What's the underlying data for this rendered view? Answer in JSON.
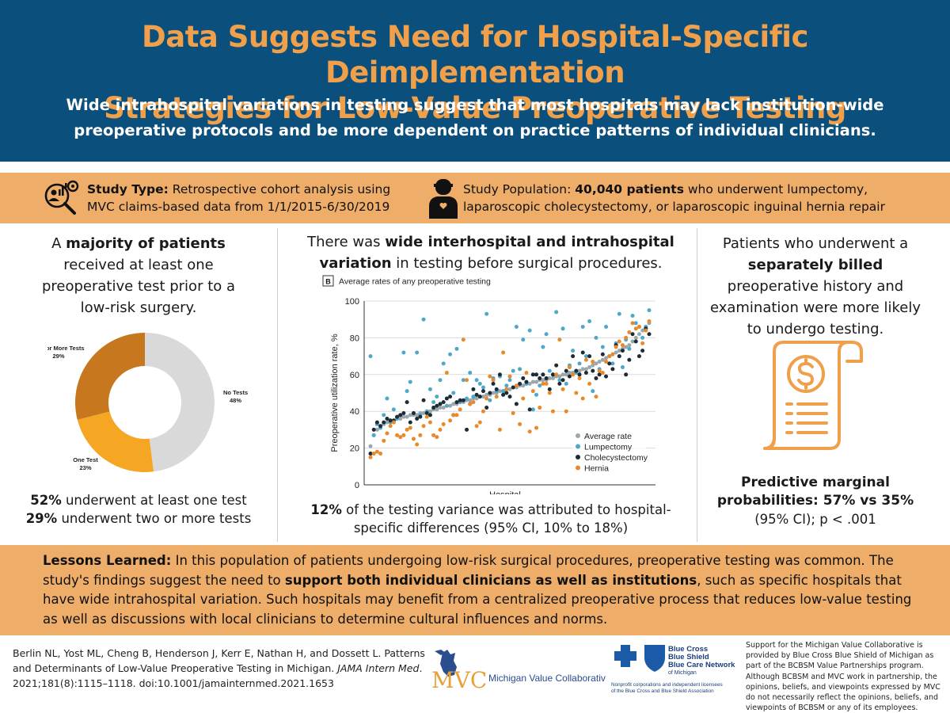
{
  "header": {
    "title_line1": "Data Suggests Need for Hospital-Specific Deimplementation",
    "title_line2": "Strategies for Low-Value Preoperative Testing",
    "subtitle": "Wide intrahospital variations in testing suggest that most hospitals may lack institution-wide preoperative protocols and be more dependent on practice patterns of individual clinicians.",
    "title_color": "#f0a04b",
    "bg_color": "#0b4f7c"
  },
  "study": {
    "type_label": "Study Type:",
    "type_text": " Retrospective cohort analysis using MVC claims-based data from 1/1/2015-6/30/2019",
    "pop_label": "Study Population: ",
    "pop_bold": "40,040 patients",
    "pop_text": " who underwent lumpectomy, laparoscopic cholecystectomy, or laparoscopic inguinal hernia repair",
    "icon1": "data-analysis-icon",
    "icon2": "person-icon",
    "bg_color": "#eeae6a"
  },
  "left": {
    "head_a": "A ",
    "head_bold": "majority of patients",
    "head_b": " received at least one preoperative test prior to a low-risk surgery.",
    "stat1_bold": "52%",
    "stat1_text": " underwent at least one test",
    "stat2_bold": "29%",
    "stat2_text": " underwent two or more tests"
  },
  "middle": {
    "head_a": "There was ",
    "head_bold": "wide interhospital and intrahospital variation",
    "head_b": " in testing before surgical procedures.",
    "foot_bold": "12%",
    "foot_text": " of the testing variance was attributed to hospital-specific differences (95% CI, 10% to 18%)"
  },
  "right": {
    "head_a": "Patients who underwent a ",
    "head_bold": "separately billed",
    "head_b": " preoperative history and examination were more likely to undergo testing.",
    "foot_bold": "Predictive marginal probabilities: 57% vs 35%",
    "foot_text": "(95% CI); p < .001",
    "icon": "bill-dollar-icon",
    "icon_color": "#f0a04b"
  },
  "lessons": {
    "label": "Lessons Learned:",
    "text_a": " In this population of patients undergoing low-risk surgical procedures, preoperative testing was common. The study's findings suggest the need to ",
    "text_bold": "support both individual clinicians as well as institutions",
    "text_b": ", such as specific hospitals that have wide intrahospital variation. Such hospitals may benefit from a centralized preoperative process that reduces low-value testing as well as discussions with local clinicians to determine cultural influences and norms."
  },
  "footer": {
    "citation_a": "Berlin NL, Yost ML, Cheng B, Henderson J, Kerr E, Nathan H, and Dossett L. Patterns and Determinants of Low-Value Preoperative Testing in Michigan. ",
    "citation_journal": "JAMA Intern Med",
    "citation_b": ". 2021;181(8):1115–1118. doi:10.1001/jamainternmed.2021.1653",
    "mvc_letters": "MVC",
    "mvc_name": "Michigan Value Collaborative",
    "bcbs_line1": "Blue Cross",
    "bcbs_line2": "Blue Shield",
    "bcbs_line3": "Blue Care Network",
    "bcbs_line4": "of Michigan",
    "bcbs_small1": "Nonprofit corporations and independent licensees",
    "bcbs_small2": "of the Blue Cross and Blue Shield Association",
    "support": "Support for the Michigan Value Collaborative is provided by Blue Cross Blue Shield of Michigan as part of the BCBSM Value Partnerships program. Although BCBSM and MVC work in partnership, the opinions, beliefs, and viewpoints expressed by MVC do not necessarily reflect the opinions, beliefs, and viewpoints of BCBSM or any of its employees."
  },
  "chart_data": [
    {
      "type": "pie",
      "donut": true,
      "slices": [
        {
          "label": "No Tests",
          "pct_label": "48%",
          "value": 48,
          "color": "#d9d9d9"
        },
        {
          "label": "One Test",
          "pct_label": "23%",
          "value": 23,
          "color": "#f5a623"
        },
        {
          "label": "Two or More Tests",
          "pct_label": "29%",
          "value": 29,
          "color": "#c7781f"
        }
      ]
    },
    {
      "type": "scatter",
      "panel_label": "B",
      "title": "Average rates of any preoperative testing",
      "xlabel": "Hospital",
      "ylabel": "Preoperative utilization rate, %",
      "ylim": [
        0,
        100
      ],
      "yticks": [
        0,
        20,
        40,
        60,
        80,
        100
      ],
      "grid": true,
      "legend_position": "bottom-right",
      "series": [
        {
          "name": "Average rate",
          "color": "#9aa7ad",
          "values": [
            21,
            27,
            30,
            31,
            33,
            34,
            35,
            35,
            36,
            36,
            37,
            37,
            38,
            38,
            38,
            39,
            39,
            40,
            40,
            41,
            41,
            42,
            42,
            43,
            43,
            44,
            44,
            45,
            45,
            46,
            46,
            47,
            47,
            48,
            48,
            49,
            49,
            50,
            50,
            51,
            51,
            52,
            52,
            53,
            53,
            54,
            54,
            55,
            55,
            56,
            56,
            57,
            57,
            57,
            58,
            58,
            59,
            59,
            60,
            60,
            61,
            61,
            62,
            62,
            63,
            63,
            64,
            65,
            66,
            67,
            68,
            69,
            70,
            71,
            72,
            73,
            74,
            75,
            76,
            78,
            80,
            82,
            84,
            86,
            88
          ]
        },
        {
          "name": "Lumpectomy",
          "color": "#4fa8c8",
          "values": [
            70,
            27,
            33,
            31,
            38,
            47,
            34,
            41,
            36,
            38,
            72,
            51,
            56,
            39,
            72,
            38,
            90,
            40,
            52,
            45,
            48,
            57,
            66,
            43,
            71,
            50,
            74,
            45,
            57,
            47,
            61,
            48,
            57,
            55,
            53,
            93,
            46,
            58,
            51,
            59,
            51,
            54,
            57,
            62,
            86,
            63,
            79,
            55,
            84,
            41,
            49,
            54,
            75,
            82,
            62,
            60,
            94,
            57,
            85,
            55,
            65,
            73,
            61,
            66,
            86,
            70,
            89,
            51,
            80,
            63,
            75,
            86,
            70,
            66,
            77,
            93,
            64,
            79,
            74,
            92,
            88,
            86,
            80,
            86,
            95
          ]
        },
        {
          "name": "Cholecystectomy",
          "color": "#1c2b36",
          "values": [
            17,
            30,
            34,
            32,
            34,
            36,
            35,
            35,
            37,
            38,
            39,
            45,
            34,
            39,
            36,
            37,
            46,
            39,
            38,
            42,
            43,
            44,
            45,
            47,
            48,
            38,
            45,
            46,
            46,
            30,
            44,
            52,
            49,
            48,
            51,
            42,
            50,
            55,
            52,
            60,
            49,
            50,
            48,
            53,
            44,
            55,
            58,
            56,
            41,
            60,
            60,
            58,
            60,
            58,
            52,
            60,
            65,
            55,
            57,
            62,
            59,
            70,
            62,
            60,
            72,
            61,
            70,
            62,
            58,
            60,
            71,
            59,
            66,
            63,
            76,
            70,
            73,
            60,
            68,
            82,
            78,
            70,
            73,
            85,
            82
          ]
        },
        {
          "name": "Hernia",
          "color": "#e8892a",
          "values": [
            15,
            17,
            18,
            17,
            24,
            28,
            32,
            34,
            27,
            26,
            27,
            30,
            31,
            25,
            22,
            27,
            32,
            37,
            34,
            27,
            26,
            30,
            33,
            61,
            35,
            38,
            38,
            41,
            79,
            57,
            44,
            45,
            32,
            34,
            40,
            47,
            59,
            57,
            48,
            30,
            72,
            52,
            59,
            39,
            54,
            33,
            47,
            61,
            29,
            51,
            31,
            42,
            55,
            55,
            50,
            40,
            60,
            79,
            52,
            40,
            64,
            60,
            50,
            58,
            47,
            68,
            55,
            67,
            48,
            62,
            61,
            67,
            70,
            71,
            75,
            78,
            76,
            80,
            83,
            88,
            85,
            86,
            77,
            84,
            89
          ]
        }
      ]
    }
  ]
}
